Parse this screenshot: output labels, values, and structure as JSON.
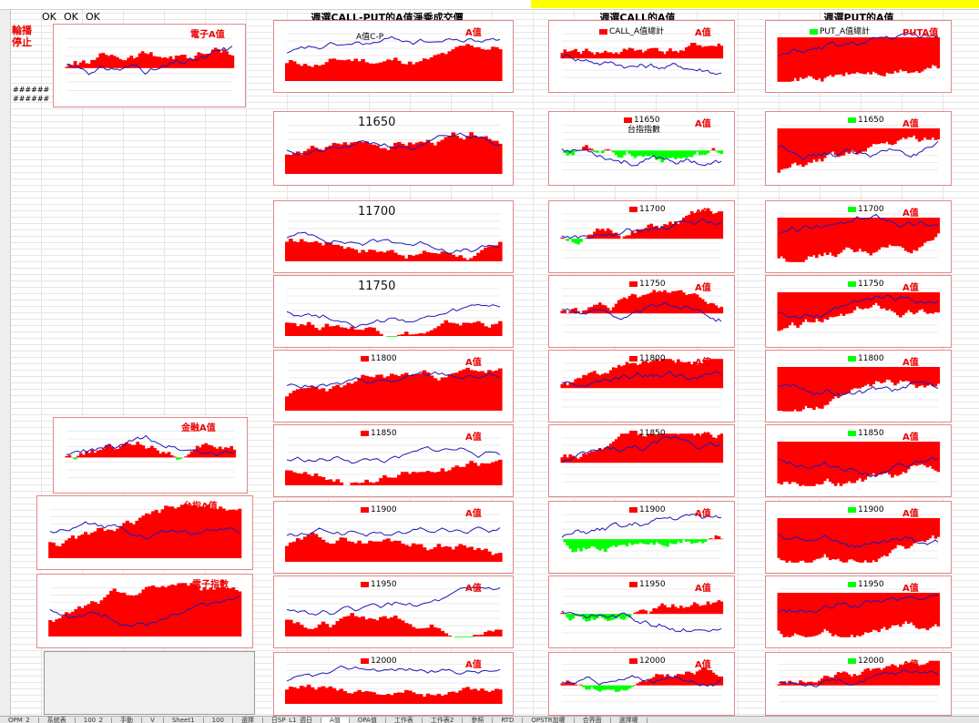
{
  "toolbar": {
    "ok_buttons": [
      "OK",
      "OK",
      "OK"
    ]
  },
  "sections": {
    "call_put": "週選CALL-PUT的A值淨乘成交價",
    "call": "週選CALL的A值",
    "put": "週選PUT的A值"
  },
  "left_panel": {
    "red_labels": [
      "輪播",
      "停止"
    ],
    "hash_rows": [
      "######",
      "######"
    ]
  },
  "left_charts": {
    "top": "電子A值",
    "mid": "金融A值",
    "low": "台指A值",
    "bottom": "電子指數"
  },
  "col1_header_label": "A值C-P",
  "a_label": "A值",
  "puta_label": "PUTA值",
  "strikes": [
    "11650",
    "11700",
    "11750",
    "11800",
    "11850",
    "11900",
    "11950",
    "12000"
  ],
  "legend": {
    "call_first": "CALL_A值總計",
    "put_first": "PUT_A值總計",
    "call_second_extra": "台指指數"
  },
  "tabs": [
    "OPM_2",
    "系統表",
    "100_2",
    "手動",
    "V",
    "Sheet1",
    "100",
    "選擇",
    "日SP_L1_週日",
    "A值",
    "OPA值",
    "工作表",
    "工作表2",
    "參照",
    "RTD",
    "OPSTR加權",
    "合界面",
    "選擇權"
  ],
  "active_tab_index": 9,
  "colors": {
    "positive": "#ff0000",
    "negative": "#00ff00",
    "line": "#1a1ab8",
    "title_red": "#e00000",
    "banner": "#ffff00"
  }
}
